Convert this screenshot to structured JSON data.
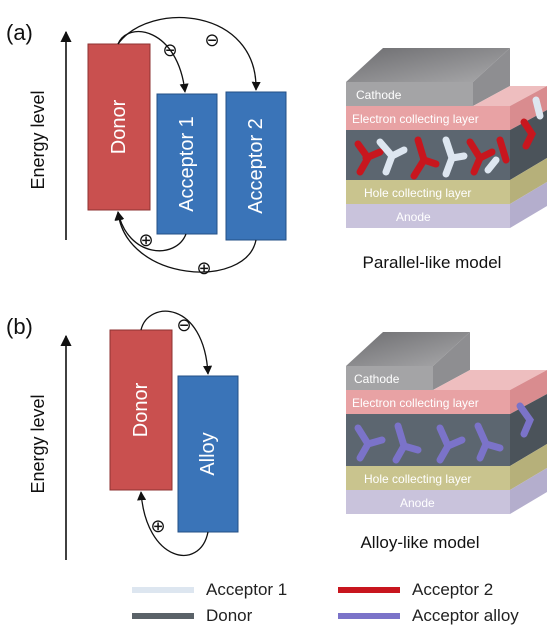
{
  "panel_a": {
    "tag": "(a)",
    "axis_label": "Energy level",
    "donor_label": "Donor",
    "acceptor1_label": "Acceptor 1",
    "acceptor2_label": "Acceptor 2",
    "electron_symbol": "⊖",
    "hole_symbol": "⊕",
    "device": {
      "cathode": "Cathode",
      "electron_layer": "Electron collecting layer",
      "hole_layer": "Hole collecting layer",
      "anode": "Anode"
    },
    "caption": "Parallel-like model"
  },
  "panel_b": {
    "tag": "(b)",
    "axis_label": "Energy level",
    "donor_label": "Donor",
    "alloy_label": "Alloy",
    "electron_symbol": "⊖",
    "hole_symbol": "⊕",
    "device": {
      "cathode": "Cathode",
      "electron_layer": "Electron collecting layer",
      "hole_layer": "Hole collecting layer",
      "anode": "Anode"
    },
    "caption": "Alloy-like model"
  },
  "legend": [
    {
      "label": "Acceptor 1",
      "color": "#dde6f0"
    },
    {
      "label": "Acceptor 2",
      "color": "#c8161e"
    },
    {
      "label": "Donor",
      "color": "#5a6268"
    },
    {
      "label": "Acceptor alloy",
      "color": "#7b73c9"
    }
  ],
  "colors": {
    "donor": "#c9504f",
    "acceptor": "#3a74b8",
    "cathode": "#a4a4a6",
    "electron_layer": "#e8a2a4",
    "active_bg": "#5c6670",
    "hole_layer": "#c9c48e",
    "anode": "#c9c3dc"
  }
}
